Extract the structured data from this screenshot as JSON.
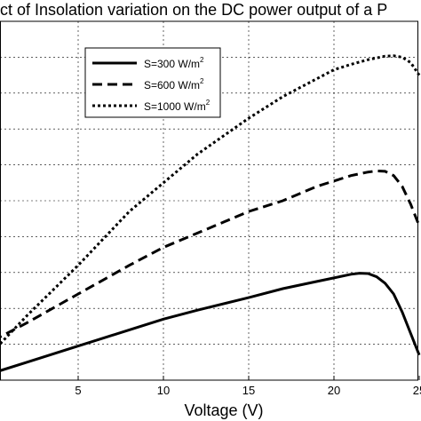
{
  "chart_data": {
    "type": "line",
    "title": "ct of Insolation variation on the DC power output of a P",
    "xlabel": "Voltage (V)",
    "ylabel": "",
    "xlim": [
      0,
      25
    ],
    "ylim": [
      0,
      100
    ],
    "grid": true,
    "x_ticks": [
      5,
      10,
      15,
      20,
      25
    ],
    "x_tick_labels": [
      "5",
      "10",
      "15",
      "20",
      "25"
    ],
    "legend_position": "top-right",
    "series": [
      {
        "name": "S=300 W/m",
        "name_superscript": "2",
        "style": "solid",
        "x": [
          0,
          2,
          5,
          8,
          10,
          12,
          15,
          17,
          19,
          20,
          21,
          21.5,
          22,
          22.5,
          23,
          23.5,
          24,
          24.5,
          25
        ],
        "y": [
          2,
          5,
          9.5,
          14,
          17,
          19.5,
          23,
          25.5,
          27.5,
          28.5,
          29.5,
          29.8,
          29.7,
          28.8,
          27,
          24,
          19,
          13,
          7
        ]
      },
      {
        "name": "S=600 W/m",
        "name_superscript": "2",
        "style": "dashed",
        "x": [
          0,
          2,
          5,
          8,
          10,
          12,
          15,
          17,
          19,
          20,
          21,
          22,
          22.5,
          23,
          23.5,
          24,
          24.5,
          25
        ],
        "y": [
          11,
          16,
          24,
          32,
          37,
          41,
          47,
          50,
          54,
          55.5,
          57,
          58,
          58.3,
          58.2,
          57,
          54,
          49,
          43
        ]
      },
      {
        "name": "S=1000 W/m",
        "name_superscript": "2",
        "style": "dotted",
        "x": [
          0,
          2,
          5,
          8,
          10,
          12,
          15,
          17,
          19,
          20,
          21,
          22,
          23,
          23.5,
          24,
          24.5,
          25
        ],
        "y": [
          8,
          18,
          32,
          47,
          55,
          63,
          73,
          79,
          84,
          86.5,
          88,
          89.3,
          90.3,
          90.4,
          90,
          88.5,
          85
        ]
      }
    ]
  }
}
